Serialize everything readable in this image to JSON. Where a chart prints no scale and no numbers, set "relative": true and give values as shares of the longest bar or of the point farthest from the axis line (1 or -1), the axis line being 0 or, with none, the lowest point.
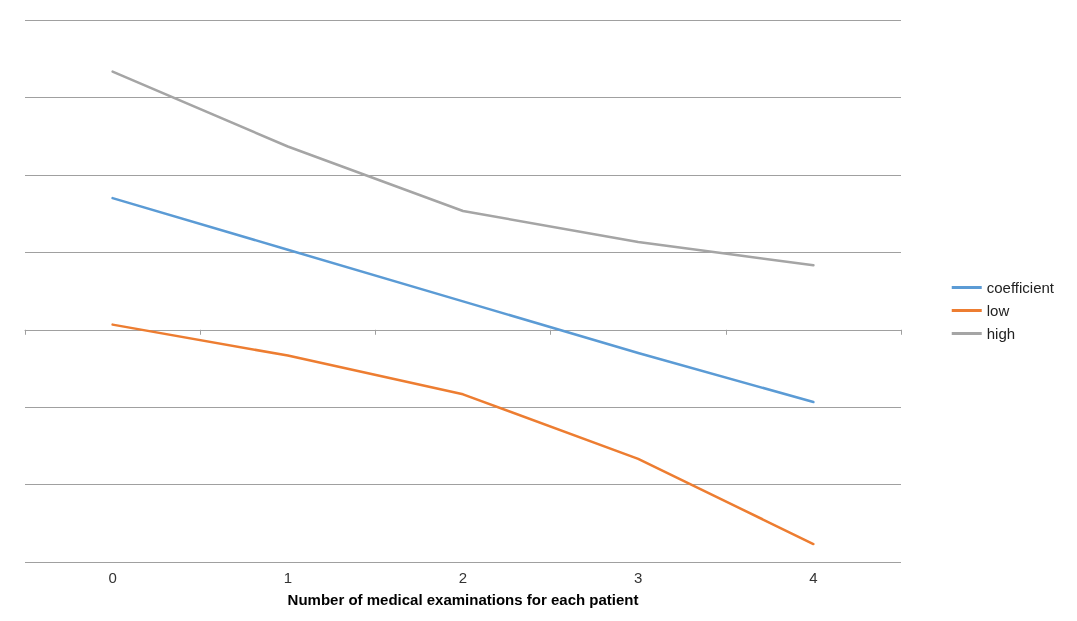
{
  "chart_data": {
    "type": "line",
    "xlabel": "Number of medical examinations for each patient",
    "categories": [
      "0",
      "1",
      "2",
      "3",
      "4"
    ],
    "relative": true,
    "grid": "y",
    "legend": "right",
    "marker": "none",
    "line_style": "solid",
    "series": [
      {
        "name": "coefficient",
        "color": "#5b9bd5",
        "values": [
          0.51,
          0.31,
          0.11,
          -0.09,
          -0.28
        ]
      },
      {
        "name": "low",
        "color": "#ed7d31",
        "values": [
          0.02,
          -0.1,
          -0.25,
          -0.5,
          -0.83
        ]
      },
      {
        "name": "high",
        "color": "#a5a5a5",
        "values": [
          1,
          0.71,
          0.46,
          0.34,
          0.25
        ]
      }
    ]
  }
}
